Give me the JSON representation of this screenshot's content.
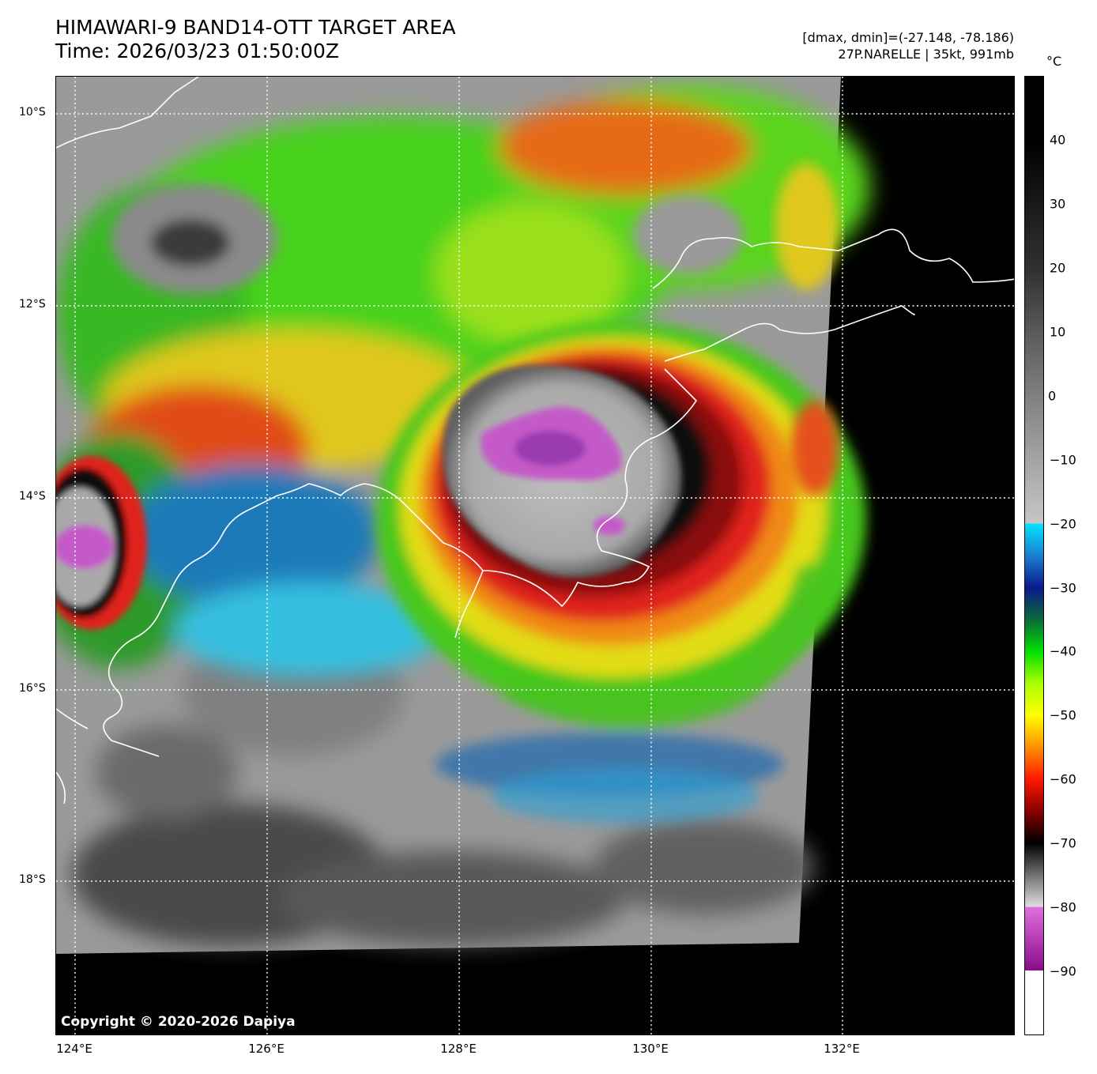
{
  "header": {
    "title_line1": "HIMAWARI-9 BAND14-OTT TARGET AREA",
    "title_line2": "Time: 2026/03/23 01:50:00Z",
    "dmax_dmin": "[dmax, dmin]=(-27.148, -78.186)",
    "storm_info": "27P.NARELLE | 35kt, 991mb"
  },
  "map": {
    "copyright": "Copyright © 2020-2026 Dapiya",
    "lat_labels": [
      "10°S",
      "12°S",
      "14°S",
      "16°S",
      "18°S"
    ],
    "lon_labels": [
      "124°E",
      "126°E",
      "128°E",
      "130°E",
      "132°E"
    ],
    "gridline_color": "#ffffff",
    "coastline_color": "#ffffff"
  },
  "colorbar": {
    "unit": "°C",
    "ticks": [
      "40",
      "30",
      "20",
      "10",
      "0",
      "−10",
      "−20",
      "−30",
      "−40",
      "−50",
      "−60",
      "−70",
      "−80",
      "−90"
    ],
    "range": [
      -100,
      50
    ]
  }
}
